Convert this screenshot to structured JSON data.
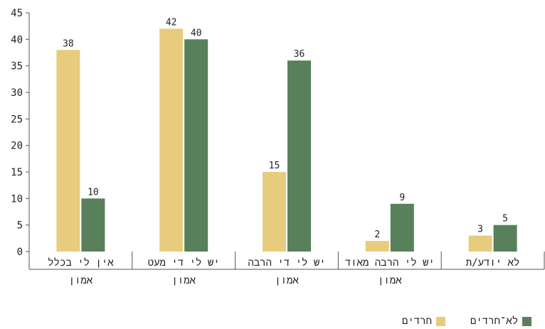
{
  "chart_data": {
    "type": "bar",
    "categories": [
      [
        "אין לי בכלל",
        "אמון"
      ],
      [
        "יש לי די מעט",
        "אמון"
      ],
      [
        "יש לי די הרבה",
        "אמון"
      ],
      [
        "יש לי הרבה מאוד",
        "אמון"
      ],
      [
        "לא יודע/ת"
      ]
    ],
    "series": [
      {
        "name": "חרדים",
        "color": "#E8CC7E",
        "values": [
          38,
          42,
          15,
          2,
          3
        ]
      },
      {
        "name": "לא־חרדים",
        "color": "#58805A",
        "values": [
          10,
          40,
          36,
          9,
          5
        ]
      }
    ],
    "ylim": [
      0,
      45
    ],
    "yticks": [
      0,
      5,
      10,
      15,
      20,
      25,
      30,
      35,
      40,
      45
    ],
    "grid": false,
    "legend_position": "bottom-right",
    "data_labels": true
  },
  "legend": {
    "series_1": "חרדים",
    "series_2": "לא־חרדים"
  }
}
